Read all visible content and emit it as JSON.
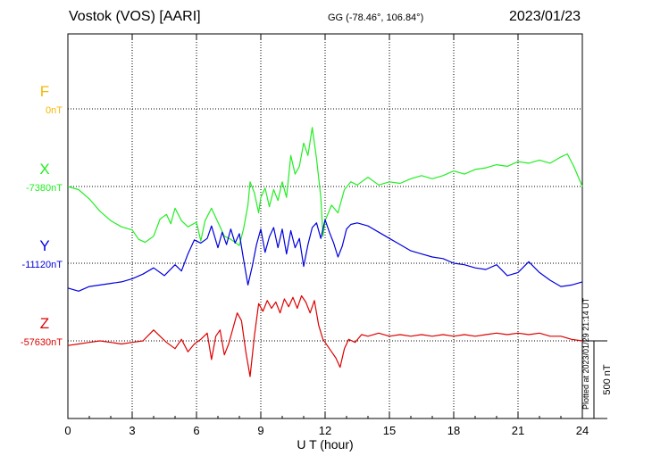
{
  "header": {
    "station": "Vostok (VOS)  [AARI]",
    "coords": "GG (-78.46°, 106.84°)",
    "date": "2023/01/23",
    "plotted": "Plotted at 2023/01/29 21:14 UT"
  },
  "chart_data": {
    "type": "line",
    "xlabel": "U T (hour)",
    "xlim": [
      0,
      24
    ],
    "xticks": [
      "0",
      "3",
      "6",
      "9",
      "12",
      "15",
      "18",
      "21",
      "24"
    ],
    "scale_bar_label": "500 nT",
    "grid": true,
    "series": [
      {
        "name": "F",
        "baseline_label": "0nT",
        "color": "#f5b800",
        "x": [],
        "y": []
      },
      {
        "name": "X",
        "baseline_label": "-7380nT",
        "color": "#22ee22",
        "x": [
          0,
          0.5,
          1,
          1.5,
          2,
          2.5,
          3,
          3.3,
          3.6,
          4,
          4.3,
          4.6,
          4.8,
          5,
          5.3,
          5.6,
          6,
          6.2,
          6.4,
          6.7,
          7,
          7.3,
          7.6,
          8,
          8.2,
          8.4,
          8.5,
          8.7,
          8.9,
          9,
          9.2,
          9.4,
          9.6,
          9.8,
          10,
          10.2,
          10.4,
          10.6,
          10.8,
          11,
          11.2,
          11.4,
          11.6,
          11.8,
          11.9,
          12,
          12.3,
          12.6,
          12.9,
          13.2,
          13.5,
          14,
          14.5,
          15,
          15.5,
          16,
          16.5,
          17,
          17.5,
          18,
          18.5,
          19,
          19.5,
          20,
          20.5,
          21,
          21.5,
          22,
          22.5,
          23,
          23.3,
          23.6,
          24
        ],
        "y": [
          -7380,
          -7400,
          -7460,
          -7540,
          -7600,
          -7640,
          -7660,
          -7720,
          -7740,
          -7700,
          -7590,
          -7560,
          -7620,
          -7520,
          -7600,
          -7640,
          -7610,
          -7730,
          -7600,
          -7520,
          -7610,
          -7700,
          -7720,
          -7760,
          -7650,
          -7500,
          -7350,
          -7420,
          -7550,
          -7450,
          -7390,
          -7510,
          -7400,
          -7470,
          -7350,
          -7450,
          -7180,
          -7300,
          -7250,
          -7100,
          -7180,
          -7000,
          -7200,
          -7450,
          -7700,
          -7600,
          -7500,
          -7550,
          -7400,
          -7350,
          -7370,
          -7320,
          -7370,
          -7350,
          -7360,
          -7330,
          -7310,
          -7330,
          -7310,
          -7280,
          -7300,
          -7270,
          -7260,
          -7240,
          -7250,
          -7220,
          -7230,
          -7210,
          -7230,
          -7190,
          -7170,
          -7250,
          -7380
        ]
      },
      {
        "name": "Y",
        "baseline_label": "-11120nT",
        "color": "#0000dd",
        "x": [
          0,
          0.5,
          1,
          1.5,
          2,
          2.5,
          3,
          3.5,
          4,
          4.5,
          5,
          5.3,
          5.6,
          5.9,
          6.2,
          6.5,
          6.7,
          7,
          7.2,
          7.4,
          7.6,
          7.8,
          8,
          8.2,
          8.4,
          8.6,
          8.8,
          9,
          9.2,
          9.4,
          9.6,
          9.8,
          10,
          10.2,
          10.4,
          10.6,
          10.8,
          11,
          11.2,
          11.4,
          11.6,
          11.8,
          12,
          12.2,
          12.4,
          12.6,
          12.8,
          13,
          13.2,
          13.5,
          14,
          14.5,
          15,
          15.5,
          16,
          16.5,
          17,
          17.5,
          18,
          18.5,
          19,
          19.5,
          20,
          20.5,
          21,
          21.5,
          22,
          22.5,
          23,
          23.5,
          24
        ],
        "y": [
          -11280,
          -11300,
          -11270,
          -11260,
          -11250,
          -11240,
          -11220,
          -11190,
          -11150,
          -11200,
          -11130,
          -11170,
          -11060,
          -10970,
          -10990,
          -10960,
          -10880,
          -11020,
          -10920,
          -11000,
          -10900,
          -10990,
          -10930,
          -11100,
          -11260,
          -11140,
          -11000,
          -10900,
          -11050,
          -10950,
          -10890,
          -11020,
          -10900,
          -11060,
          -10910,
          -11020,
          -10960,
          -11140,
          -11000,
          -10890,
          -10860,
          -10960,
          -10840,
          -10920,
          -10990,
          -11080,
          -11010,
          -10900,
          -10870,
          -10860,
          -10880,
          -10920,
          -10960,
          -11000,
          -11040,
          -11060,
          -11080,
          -11090,
          -11120,
          -11130,
          -11150,
          -11160,
          -11130,
          -11200,
          -11180,
          -11110,
          -11180,
          -11230,
          -11270,
          -11260,
          -11240
        ]
      },
      {
        "name": "Z",
        "baseline_label": "-57630nT",
        "color": "#dd0000",
        "x": [
          0,
          0.5,
          1,
          1.5,
          2,
          2.5,
          3,
          3.5,
          4,
          4.3,
          4.6,
          5,
          5.3,
          5.6,
          5.9,
          6.2,
          6.5,
          6.7,
          6.9,
          7.1,
          7.3,
          7.5,
          7.7,
          7.9,
          8.1,
          8.3,
          8.5,
          8.7,
          8.9,
          9.1,
          9.3,
          9.5,
          9.7,
          9.9,
          10.1,
          10.3,
          10.5,
          10.7,
          10.9,
          11.1,
          11.3,
          11.5,
          11.7,
          11.9,
          12.1,
          12.3,
          12.5,
          12.7,
          12.9,
          13.1,
          13.4,
          13.7,
          14,
          14.5,
          15,
          15.5,
          16,
          16.5,
          17,
          17.5,
          18,
          18.5,
          19,
          19.5,
          20,
          20.5,
          21,
          21.5,
          22,
          22.5,
          23,
          23.5,
          24
        ],
        "y": [
          -57660,
          -57650,
          -57640,
          -57630,
          -57640,
          -57650,
          -57640,
          -57630,
          -57560,
          -57600,
          -57640,
          -57680,
          -57620,
          -57700,
          -57650,
          -57620,
          -57580,
          -57750,
          -57600,
          -57560,
          -57720,
          -57650,
          -57550,
          -57450,
          -57500,
          -57700,
          -57860,
          -57600,
          -57390,
          -57440,
          -57370,
          -57420,
          -57380,
          -57450,
          -57360,
          -57410,
          -57350,
          -57420,
          -57340,
          -57380,
          -57450,
          -57370,
          -57530,
          -57620,
          -57660,
          -57700,
          -57740,
          -57800,
          -57680,
          -57620,
          -57640,
          -57590,
          -57600,
          -57580,
          -57600,
          -57590,
          -57600,
          -57590,
          -57600,
          -57590,
          -57600,
          -57590,
          -57600,
          -57590,
          -57580,
          -57590,
          -57580,
          -57590,
          -57580,
          -57600,
          -57600,
          -57620,
          -57630
        ]
      }
    ]
  }
}
